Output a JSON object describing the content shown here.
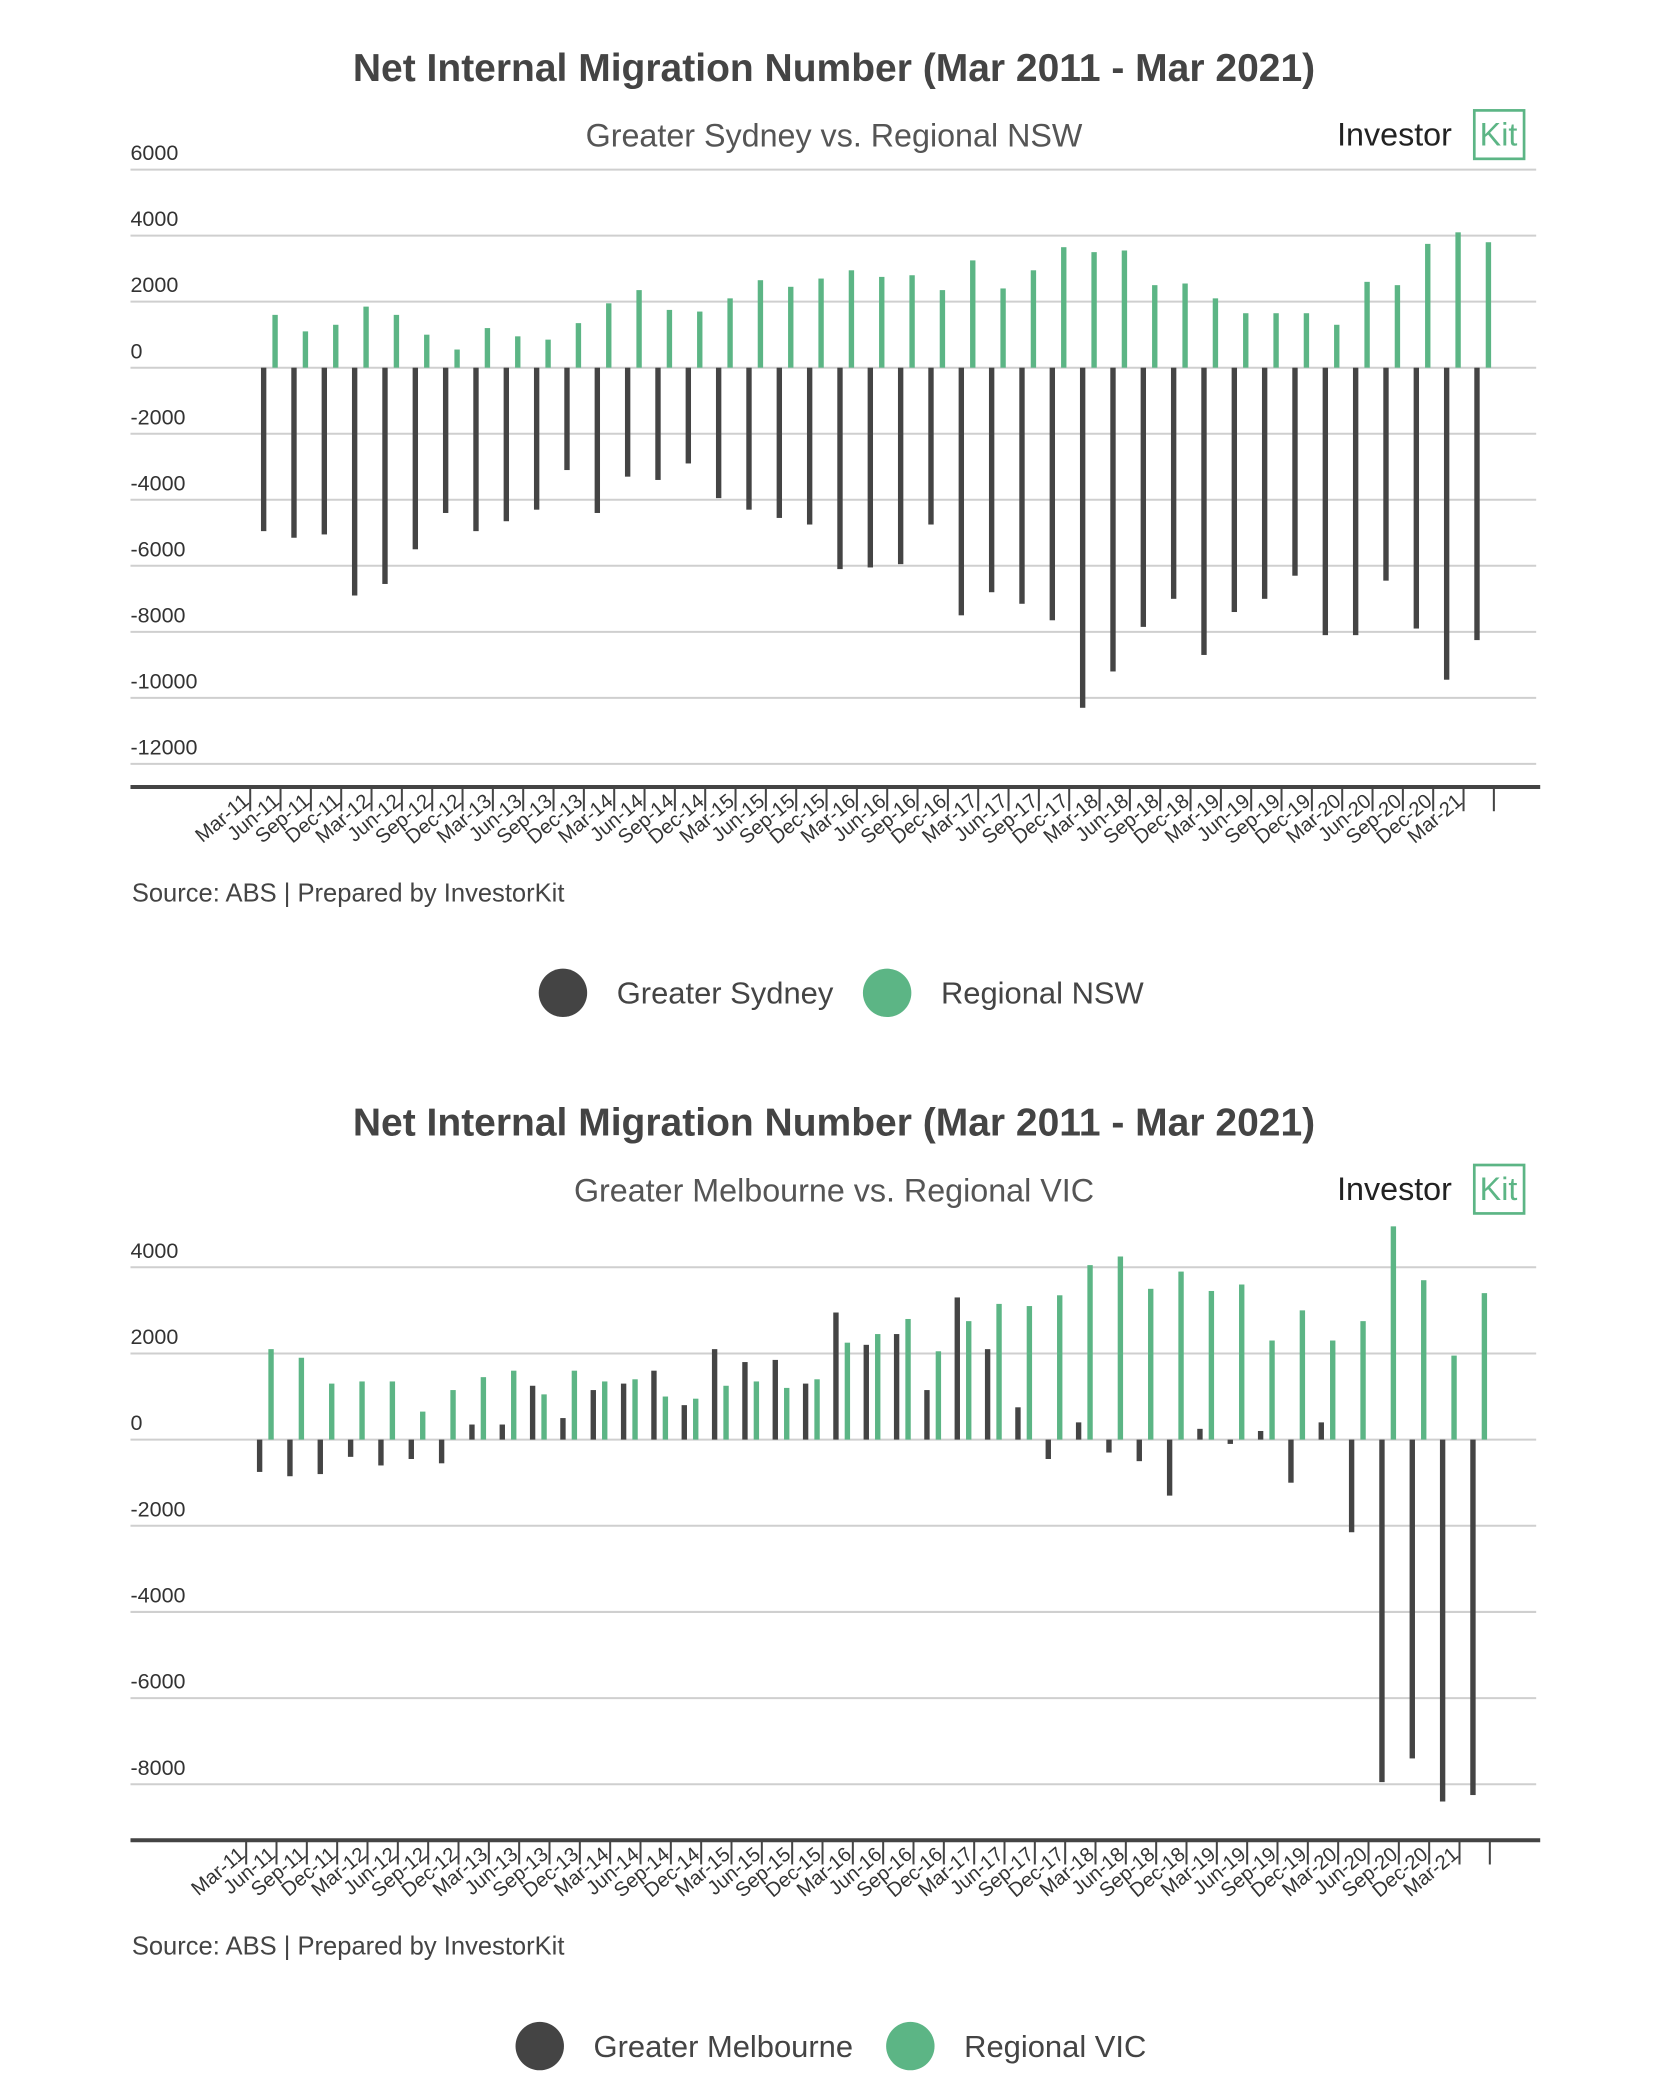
{
  "chart_data": [
    {
      "type": "bar",
      "title": "Net Internal Migration Number (Mar 2011 - Mar 2021)",
      "subtitle": "Greater Sydney vs. Regional NSW",
      "logo": "Investor",
      "logo_box": "Kit",
      "source": "Source: ABS | Prepared by InvestorKit",
      "categories": [
        "Mar-11",
        "Jun-11",
        "Sep-11",
        "Dec-11",
        "Mar-12",
        "Jun-12",
        "Sep-12",
        "Dec-12",
        "Mar-13",
        "Jun-13",
        "Sep-13",
        "Dec-13",
        "Mar-14",
        "Jun-14",
        "Sep-14",
        "Dec-14",
        "Mar-15",
        "Jun-15",
        "Sep-15",
        "Dec-15",
        "Mar-16",
        "Jun-16",
        "Sep-16",
        "Dec-16",
        "Mar-17",
        "Jun-17",
        "Sep-17",
        "Dec-17",
        "Mar-18",
        "Jun-18",
        "Sep-18",
        "Dec-18",
        "Mar-19",
        "Jun-19",
        "Sep-19",
        "Dec-19",
        "Mar-20",
        "Jun-20",
        "Sep-20",
        "Dec-20",
        "Mar-21"
      ],
      "series": [
        {
          "name": "Greater Sydney",
          "color": "#444444",
          "values": [
            -4950,
            -5150,
            -5050,
            -6900,
            -6550,
            -5500,
            -4400,
            -4950,
            -4650,
            -4300,
            -3100,
            -4400,
            -3300,
            -3400,
            -2900,
            -3950,
            -4300,
            -4550,
            -4750,
            -6100,
            -6050,
            -5950,
            -4750,
            -7500,
            -6800,
            -7150,
            -7650,
            -10300,
            -9200,
            -7850,
            -7000,
            -8700,
            -7400,
            -7000,
            -6300,
            -8100,
            -8100,
            -6450,
            -7900,
            -9450,
            -8250
          ]
        },
        {
          "name": "Regional NSW",
          "color": "#5cb585",
          "values": [
            1600,
            1100,
            1300,
            1850,
            1600,
            1000,
            550,
            1200,
            950,
            850,
            1350,
            1950,
            2350,
            1750,
            1700,
            2100,
            2650,
            2450,
            2700,
            2950,
            2750,
            2800,
            2350,
            3250,
            2400,
            2950,
            3650,
            3500,
            3550,
            2500,
            2550,
            2100,
            1650,
            1650,
            1650,
            1300,
            2600,
            2500,
            3750,
            4100,
            3800
          ]
        }
      ],
      "ylim": [
        -12700,
        6000
      ],
      "yticks": [
        6000,
        4000,
        2000,
        0,
        -2000,
        -4000,
        -6000,
        -8000,
        -10000,
        -12000
      ],
      "grid": true
    },
    {
      "type": "bar",
      "title": "Net Internal Migration Number (Mar 2011 - Mar 2021)",
      "subtitle": "Greater Melbourne vs. Regional VIC",
      "logo": "Investor",
      "logo_box": "Kit",
      "source": "Source: ABS | Prepared by InvestorKit",
      "categories": [
        "Mar-11",
        "Jun-11",
        "Sep-11",
        "Dec-11",
        "Mar-12",
        "Jun-12",
        "Sep-12",
        "Dec-12",
        "Mar-13",
        "Jun-13",
        "Sep-13",
        "Dec-13",
        "Mar-14",
        "Jun-14",
        "Sep-14",
        "Dec-14",
        "Mar-15",
        "Jun-15",
        "Sep-15",
        "Dec-15",
        "Mar-16",
        "Jun-16",
        "Sep-16",
        "Dec-16",
        "Mar-17",
        "Jun-17",
        "Sep-17",
        "Dec-17",
        "Mar-18",
        "Jun-18",
        "Sep-18",
        "Dec-18",
        "Mar-19",
        "Jun-19",
        "Sep-19",
        "Dec-19",
        "Mar-20",
        "Jun-20",
        "Sep-20",
        "Dec-20",
        "Mar-21"
      ],
      "series": [
        {
          "name": "Greater Melbourne",
          "color": "#444444",
          "values": [
            -750,
            -850,
            -800,
            -400,
            -600,
            -450,
            -550,
            350,
            350,
            1250,
            500,
            1150,
            1300,
            1600,
            800,
            2100,
            1800,
            1850,
            1300,
            2950,
            2200,
            2450,
            1150,
            3300,
            2100,
            750,
            -450,
            400,
            -300,
            -500,
            -1300,
            250,
            -100,
            200,
            -1000,
            400,
            -2150,
            -7950,
            -7400,
            -8400,
            -8250
          ]
        },
        {
          "name": "Regional VIC",
          "color": "#5cb585",
          "values": [
            2100,
            1900,
            1300,
            1350,
            1350,
            650,
            1150,
            1450,
            1600,
            1050,
            1600,
            1350,
            1400,
            1000,
            950,
            1250,
            1350,
            1200,
            1400,
            2250,
            2450,
            2800,
            2050,
            2750,
            3150,
            3100,
            3350,
            4050,
            4250,
            3500,
            3900,
            3450,
            3600,
            2300,
            3000,
            2300,
            2750,
            4950,
            3700,
            1950,
            3400
          ]
        }
      ],
      "ylim": [
        -9300,
        5000
      ],
      "yticks": [
        4000,
        2000,
        0,
        -2000,
        -4000,
        -6000,
        -8000
      ],
      "grid": true
    }
  ]
}
